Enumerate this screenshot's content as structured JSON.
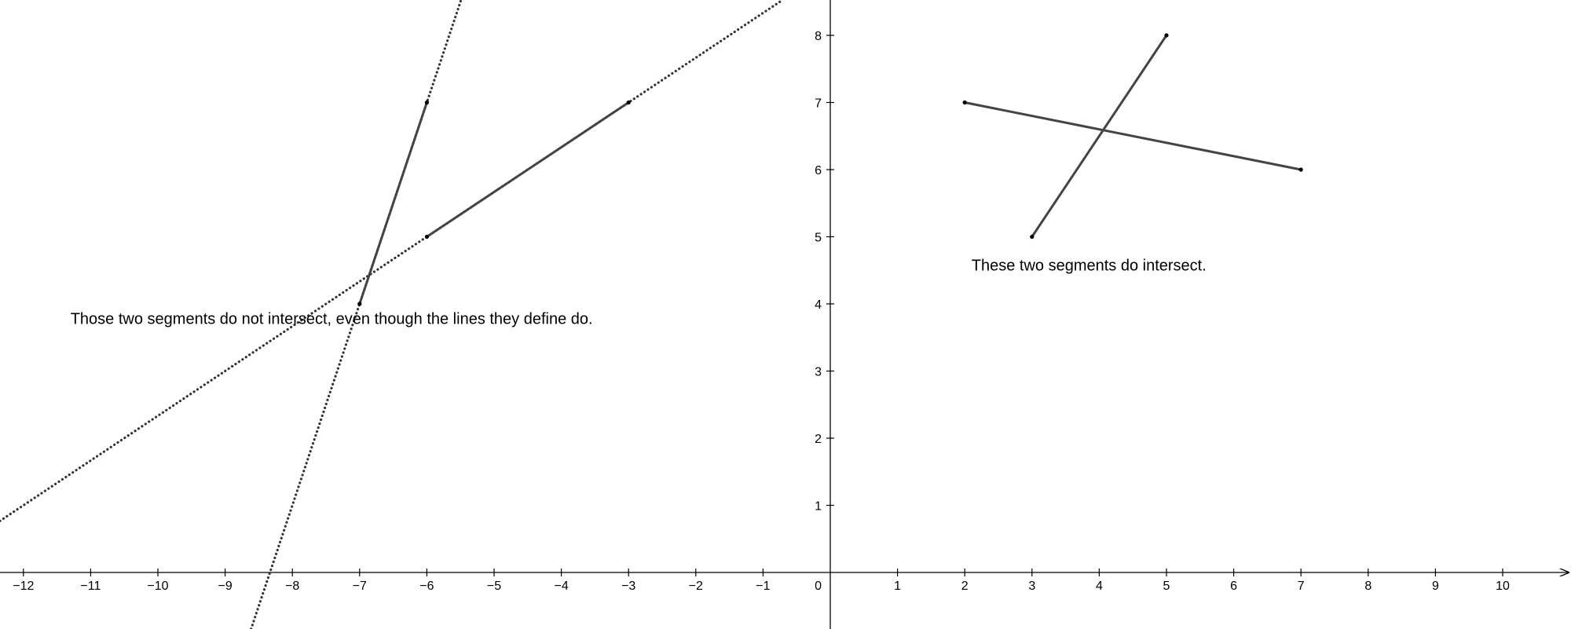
{
  "chart_data": {
    "type": "diagram",
    "x_range": [
      -12.35,
      11.0
    ],
    "y_range": [
      -0.85,
      8.5
    ],
    "x_ticks": [
      -12,
      -11,
      -10,
      -9,
      -8,
      -7,
      -6,
      -5,
      -4,
      -3,
      -2,
      -1,
      1,
      2,
      3,
      4,
      5,
      6,
      7,
      8,
      9,
      10
    ],
    "y_ticks": [
      1,
      2,
      3,
      4,
      5,
      6,
      7,
      8
    ],
    "origin_label": "0",
    "lines": [
      {
        "through": [
          [
            -6,
            5
          ],
          [
            -3,
            7
          ]
        ],
        "style": "dotted"
      },
      {
        "through": [
          [
            -7,
            4
          ],
          [
            -6,
            7
          ]
        ],
        "style": "dotted"
      }
    ],
    "segments": [
      {
        "from": [
          -6,
          5
        ],
        "to": [
          -3,
          7
        ]
      },
      {
        "from": [
          -7,
          4
        ],
        "to": [
          -6,
          7
        ]
      },
      {
        "from": [
          2,
          7
        ],
        "to": [
          7,
          6
        ]
      },
      {
        "from": [
          3,
          5
        ],
        "to": [
          5,
          8
        ]
      }
    ],
    "points": [
      [
        -6,
        5
      ],
      [
        -3,
        7
      ],
      [
        -7,
        4
      ],
      [
        -6,
        7
      ],
      [
        2,
        7
      ],
      [
        7,
        6
      ],
      [
        3,
        5
      ],
      [
        5,
        8
      ]
    ],
    "annotations": [
      {
        "text": "Those two segments do not intersect, even though the lines they define do.",
        "at": [
          -11.3,
          3.7
        ]
      },
      {
        "text": "These two segments do intersect.",
        "at": [
          2.1,
          4.5
        ]
      }
    ]
  },
  "colors": {
    "axis": "#000000",
    "segment": "#444444",
    "dotted_line": "#333333",
    "point": "#000000"
  }
}
